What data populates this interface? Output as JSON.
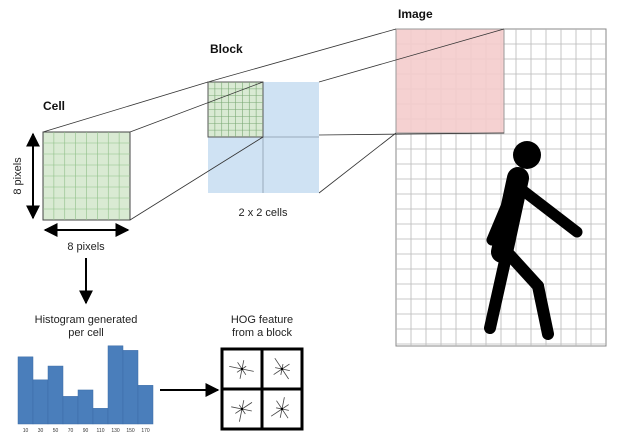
{
  "labels": {
    "image": "Image",
    "block": "Block",
    "cell": "Cell",
    "cell_height": "8 pixels",
    "cell_width": "8 pixels",
    "block_size": "2 x 2 cells",
    "histogram_line1": "Histogram generated",
    "histogram_line2": "per cell",
    "hog_line1": "HOG feature",
    "hog_line2": "from a block"
  },
  "icons": {
    "figure": "walking-person-icon",
    "gradient": "gradient-star-icon"
  },
  "colors": {
    "cell_fill": "#d9ead3",
    "cell_grid": "#8fbf88",
    "block_fill": "#cfe2f3",
    "block_highlight": "#f4cccc",
    "bar": "#4a7ebb",
    "figure": "#000000"
  },
  "chart_data": {
    "type": "bar",
    "categories": [
      "10",
      "30",
      "50",
      "70",
      "90",
      "110",
      "130",
      "150",
      "170"
    ],
    "values": [
      73,
      48,
      63,
      30,
      37,
      17,
      85,
      80,
      42
    ],
    "ylim": [
      0,
      100
    ]
  }
}
